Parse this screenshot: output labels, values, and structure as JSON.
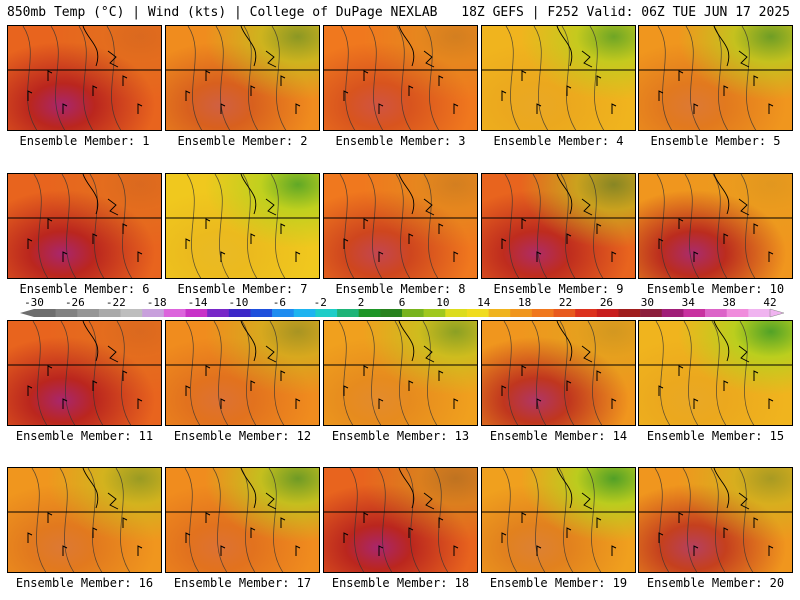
{
  "header": {
    "left": "850mb Temp (°C) | Wind (kts) | College of DuPage NEXLAB",
    "right": "18Z GEFS | F252 Valid: 06Z TUE JUN 17 2025"
  },
  "panels": [
    {
      "label": "Ensemble Member: 1",
      "base": "#e8641e",
      "hot": 0.55,
      "cool": 0.05
    },
    {
      "label": "Ensemble Member: 2",
      "base": "#f08c1e",
      "hot": 0.25,
      "cool": 0.35
    },
    {
      "label": "Ensemble Member: 3",
      "base": "#f0781e",
      "hot": 0.25,
      "cool": 0.1
    },
    {
      "label": "Ensemble Member: 4",
      "base": "#f0b41e",
      "hot": 0.05,
      "cool": 0.45
    },
    {
      "label": "Ensemble Member: 5",
      "base": "#f0961e",
      "hot": 0.15,
      "cool": 0.45
    },
    {
      "label": "Ensemble Member: 6",
      "base": "#e8641e",
      "hot": 0.55,
      "cool": 0.05
    },
    {
      "label": "Ensemble Member: 7",
      "base": "#f0c81e",
      "hot": 0.05,
      "cool": 0.5
    },
    {
      "label": "Ensemble Member: 8",
      "base": "#f0781e",
      "hot": 0.35,
      "cool": 0.1
    },
    {
      "label": "Ensemble Member: 9",
      "base": "#e8641e",
      "hot": 0.5,
      "cool": 0.35
    },
    {
      "label": "Ensemble Member: 10",
      "base": "#f0961e",
      "hot": 0.55,
      "cool": 0.05
    },
    {
      "label": "Ensemble Member: 11",
      "base": "#e8641e",
      "hot": 0.55,
      "cool": 0.05
    },
    {
      "label": "Ensemble Member: 12",
      "base": "#f08c1e",
      "hot": 0.15,
      "cool": 0.25
    },
    {
      "label": "Ensemble Member: 13",
      "base": "#f0a01e",
      "hot": 0.1,
      "cool": 0.35
    },
    {
      "label": "Ensemble Member: 14",
      "base": "#f0961e",
      "hot": 0.5,
      "cool": 0.1
    },
    {
      "label": "Ensemble Member: 15",
      "base": "#f0b41e",
      "hot": 0.05,
      "cool": 0.55
    },
    {
      "label": "Ensemble Member: 16",
      "base": "#f0961e",
      "hot": 0.15,
      "cool": 0.3
    },
    {
      "label": "Ensemble Member: 17",
      "base": "#f08c1e",
      "hot": 0.15,
      "cool": 0.45
    },
    {
      "label": "Ensemble Member: 18",
      "base": "#e8641e",
      "hot": 0.55,
      "cool": 0.15
    },
    {
      "label": "Ensemble Member: 19",
      "base": "#f0a01e",
      "hot": 0.15,
      "cool": 0.55
    },
    {
      "label": "Ensemble Member: 20",
      "base": "#f0961e",
      "hot": 0.45,
      "cool": 0.25
    }
  ],
  "colorbar": {
    "ticks": [
      "-30",
      "-26",
      "-22",
      "-18",
      "-14",
      "-10",
      "-6",
      "-2",
      "2",
      "6",
      "10",
      "14",
      "18",
      "22",
      "26",
      "30",
      "34",
      "38",
      "42"
    ],
    "colors": [
      "#6e6e6e",
      "#828282",
      "#969696",
      "#aaaaaa",
      "#bebebe",
      "#c8a0dc",
      "#dc64dc",
      "#c832c8",
      "#7828c8",
      "#3c28c8",
      "#1e50dc",
      "#1e8cf0",
      "#1eb4f0",
      "#1ecdc8",
      "#1eb478",
      "#1e9628",
      "#28821e",
      "#78b41e",
      "#a0c81e",
      "#dcdc1e",
      "#f0dc1e",
      "#f0b41e",
      "#f0961e",
      "#f0781e",
      "#e85a1e",
      "#dc321e",
      "#c81e1e",
      "#a01e1e",
      "#8c1e3c",
      "#a01e78",
      "#c832a0",
      "#dc64c8",
      "#f08cdc",
      "#f0b4f0"
    ]
  },
  "colors": {
    "hot_core": "#b41e1e",
    "extreme": "#a01e78",
    "cool_zone": "#b4d21e",
    "contour": "#333333",
    "boundary": "#000000"
  }
}
